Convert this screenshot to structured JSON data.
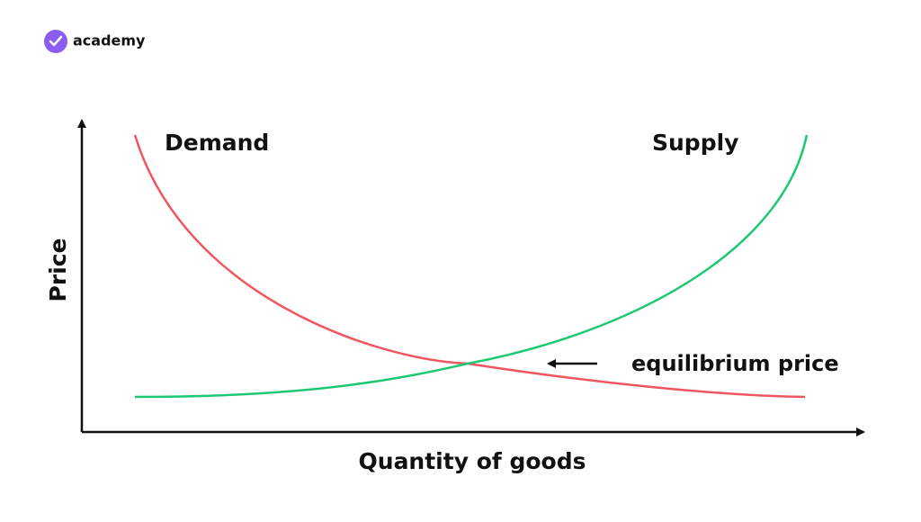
{
  "brand": {
    "name": "academy"
  },
  "axes": {
    "y_label": "Price",
    "x_label": "Quantity of goods"
  },
  "curves": [
    {
      "label": "Demand"
    },
    {
      "label": "Supply"
    }
  ],
  "annotation": {
    "label": "equilibrium price"
  }
}
